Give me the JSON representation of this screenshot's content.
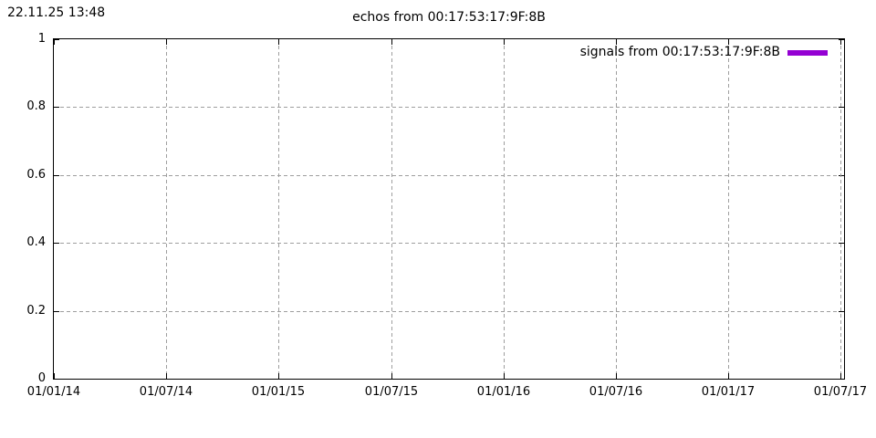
{
  "page": {
    "timestamp": "22.11.25 13:48"
  },
  "chart_data": {
    "type": "line",
    "title": "echos from 00:17:53:17:9F:8B",
    "xlabel": "",
    "ylabel": "",
    "x_ticks": [
      "01/01/14",
      "01/07/14",
      "01/01/15",
      "01/07/15",
      "01/01/16",
      "01/07/16",
      "01/01/17",
      "01/07/17"
    ],
    "y_ticks": [
      "0",
      "0.2",
      "0.4",
      "0.6",
      "0.8",
      "1"
    ],
    "ylim": [
      0,
      1
    ],
    "grid": true,
    "grid_style": "dashed",
    "grid_color": "#9e9e9e",
    "border_color": "#000000",
    "legend_position": "top-right-inside",
    "series": [
      {
        "name": "signals from 00:17:53:17:9F:8B",
        "color": "#9400d3",
        "x": [],
        "values": []
      }
    ]
  }
}
